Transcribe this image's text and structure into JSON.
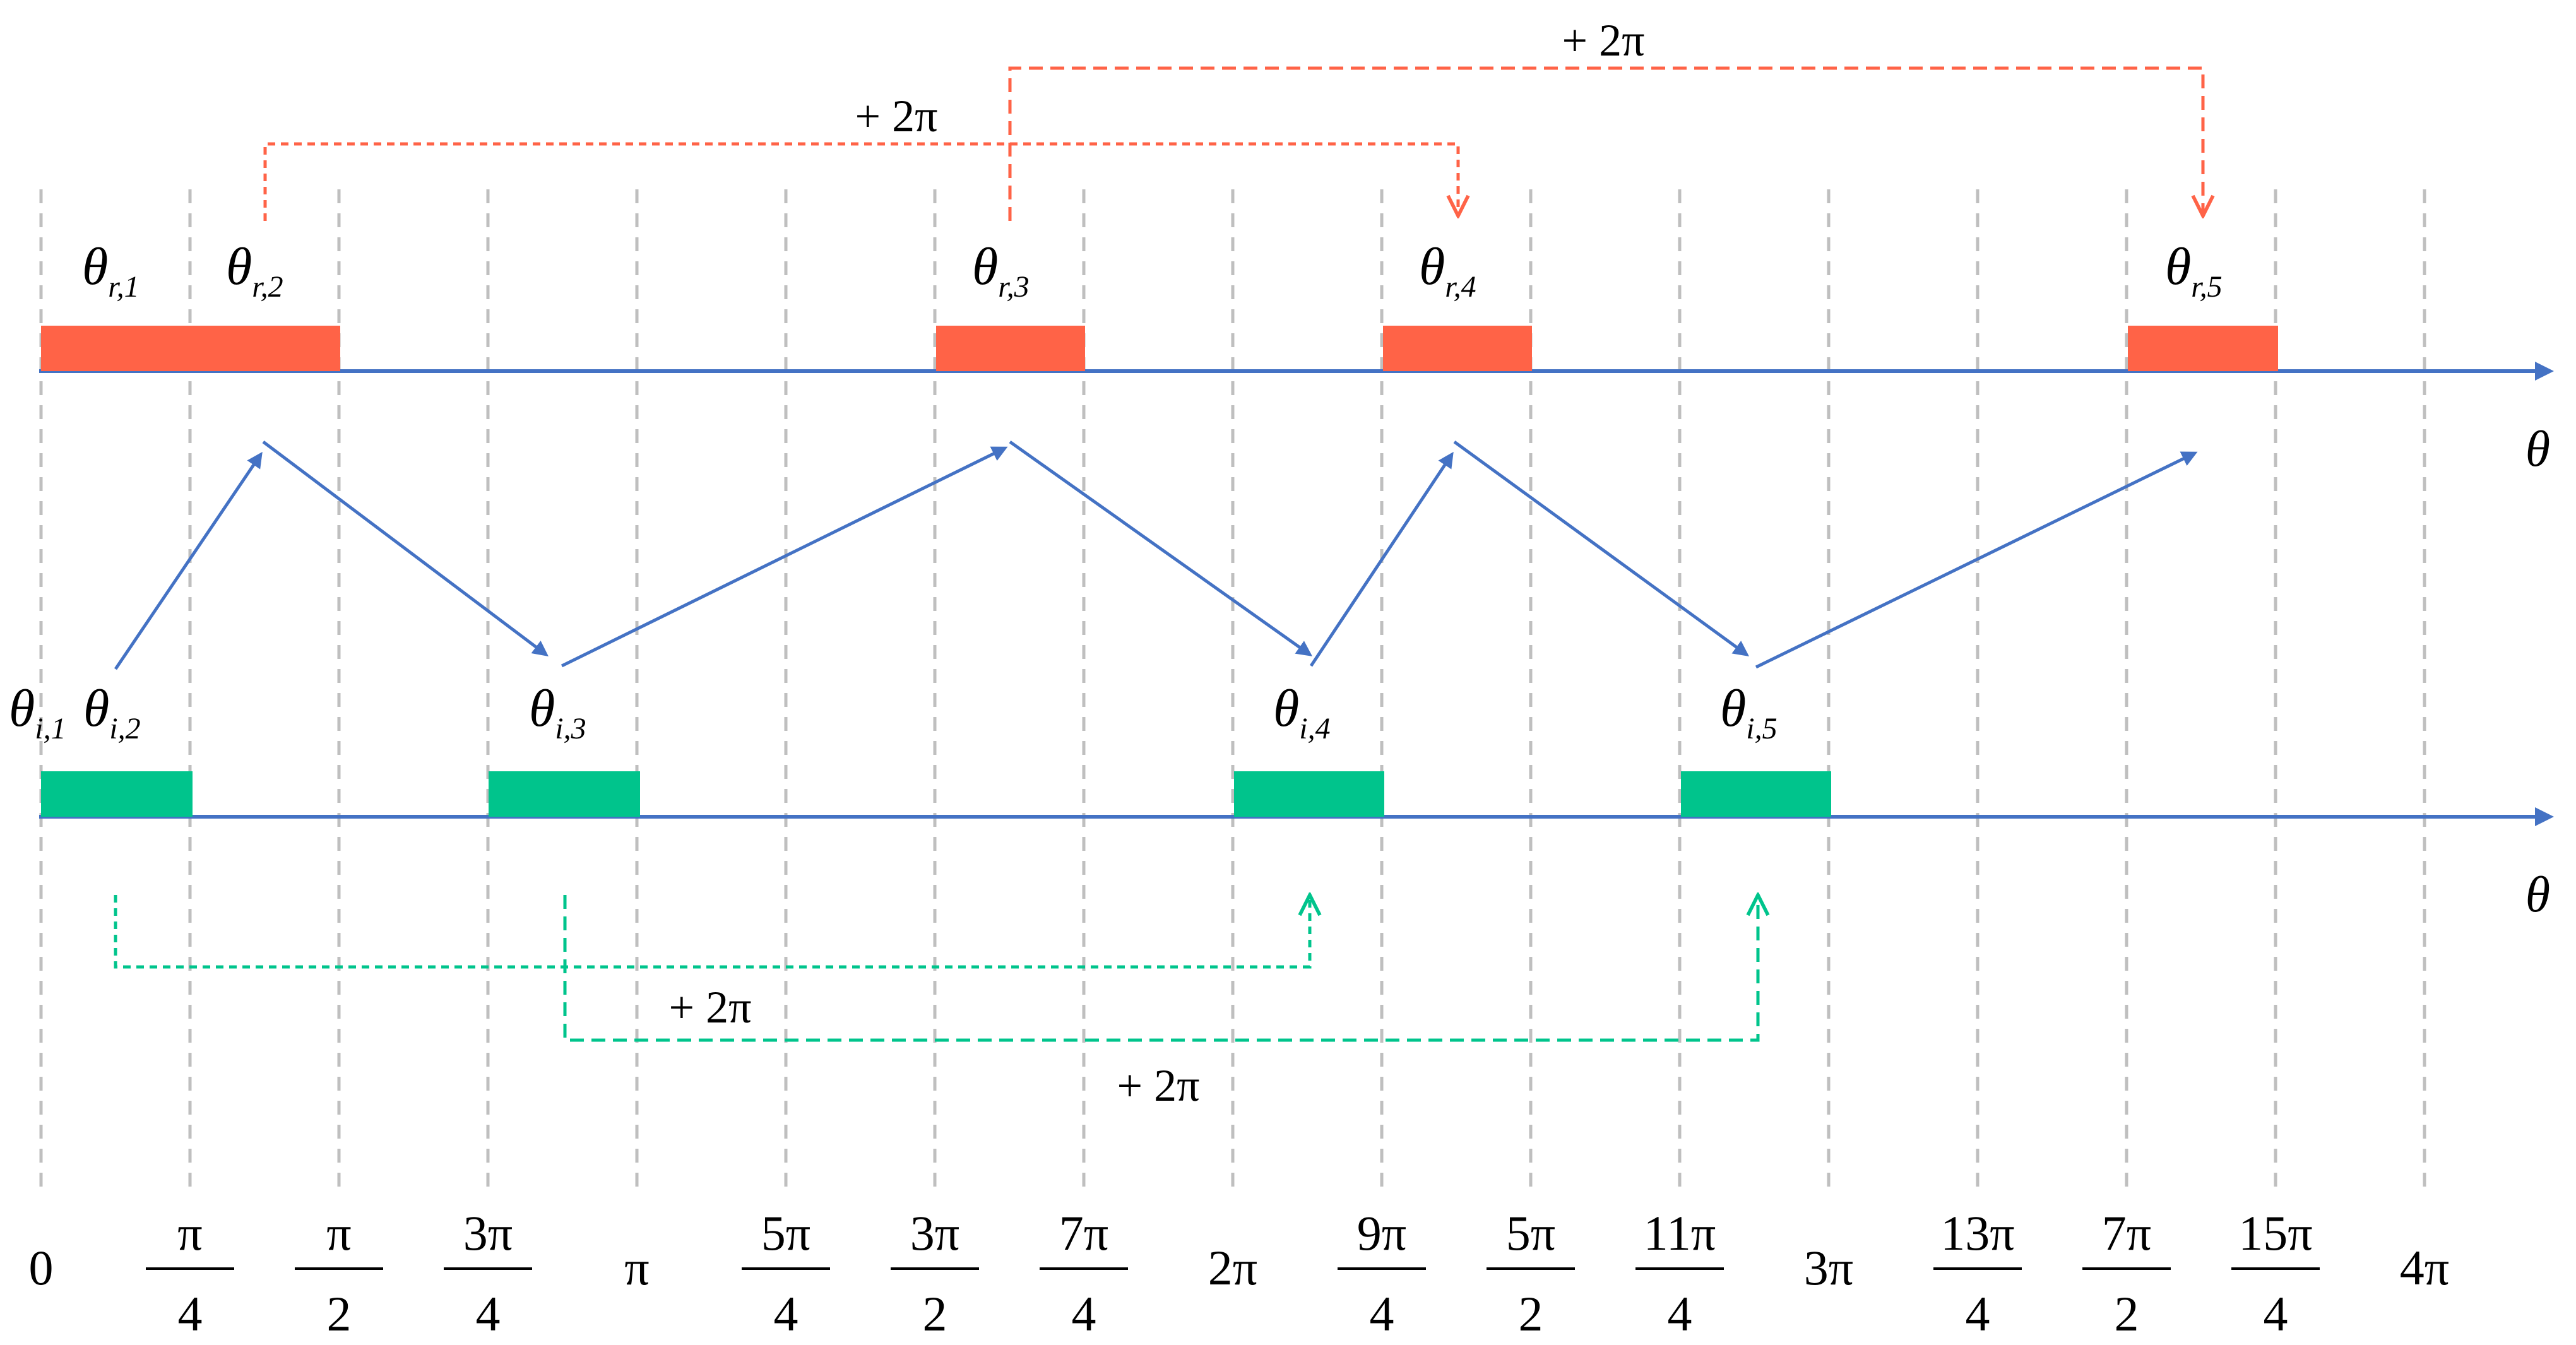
{
  "colors": {
    "axis": "#4472C4",
    "reflected": "#FF6347",
    "incident": "#00C48C",
    "grid": "#BFBFBF",
    "text": "#000000"
  },
  "axis_label": "θ",
  "reflected_labels": [
    {
      "sym": "θ",
      "sub": "r,1"
    },
    {
      "sym": "θ",
      "sub": "r,2"
    },
    {
      "sym": "θ",
      "sub": "r,3"
    },
    {
      "sym": "θ",
      "sub": "r,4"
    },
    {
      "sym": "θ",
      "sub": "r,5"
    }
  ],
  "incident_labels": [
    {
      "sym": "θ",
      "sub": "i,1"
    },
    {
      "sym": "θ",
      "sub": "i,2"
    },
    {
      "sym": "θ",
      "sub": "i,3"
    },
    {
      "sym": "θ",
      "sub": "i,4"
    },
    {
      "sym": "θ",
      "sub": "i,5"
    }
  ],
  "shift_label": "+ 2π",
  "ticks": [
    {
      "num": "0",
      "den": ""
    },
    {
      "num": "π",
      "den": "4"
    },
    {
      "num": "π",
      "den": "2"
    },
    {
      "num": "3π",
      "den": "4"
    },
    {
      "num": "π",
      "den": ""
    },
    {
      "num": "5π",
      "den": "4"
    },
    {
      "num": "3π",
      "den": "2"
    },
    {
      "num": "7π",
      "den": "4"
    },
    {
      "num": "2π",
      "den": ""
    },
    {
      "num": "9π",
      "den": "4"
    },
    {
      "num": "5π",
      "den": "2"
    },
    {
      "num": "11π",
      "den": "4"
    },
    {
      "num": "3π",
      "den": ""
    },
    {
      "num": "13π",
      "den": "4"
    },
    {
      "num": "7π",
      "den": "2"
    },
    {
      "num": "15π",
      "den": "4"
    },
    {
      "num": "4π",
      "den": ""
    }
  ]
}
